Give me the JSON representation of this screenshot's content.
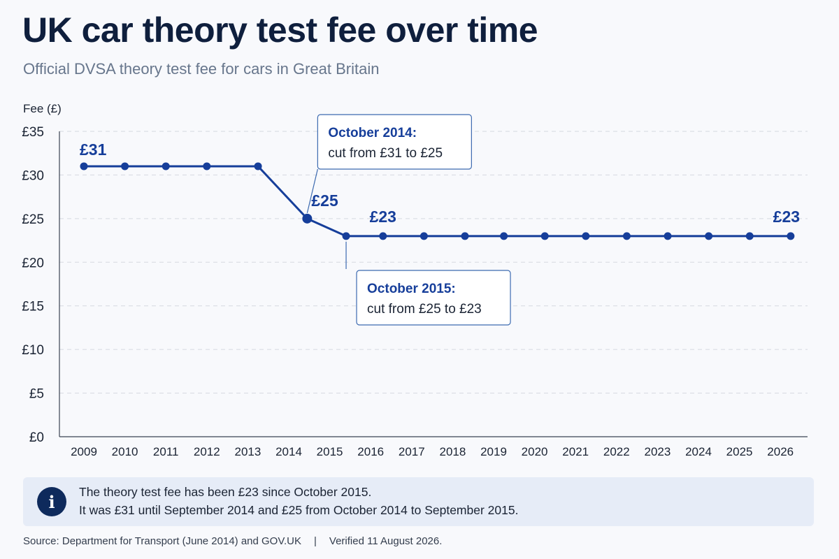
{
  "title": "UK car theory test fee over time",
  "subtitle": "Official DVSA theory test fee for cars in Great Britain",
  "colors": {
    "line": "#163e9a",
    "accent_text": "#163e9a",
    "callout_border": "#3c6ab0",
    "grid": "#d5d9e0",
    "info_bg": "#e6ecf7",
    "info_icon": "#0e2a5c"
  },
  "chart_data": {
    "type": "line",
    "ylabel": "Fee (£)",
    "ylim": [
      0,
      35
    ],
    "y_ticks": [
      {
        "value": 0,
        "label": "£0"
      },
      {
        "value": 5,
        "label": "£5"
      },
      {
        "value": 10,
        "label": "£10"
      },
      {
        "value": 15,
        "label": "£15"
      },
      {
        "value": 20,
        "label": "£20"
      },
      {
        "value": 25,
        "label": "£25"
      },
      {
        "value": 30,
        "label": "£30"
      },
      {
        "value": 35,
        "label": "£35"
      }
    ],
    "x_ticks": [
      "2009",
      "2010",
      "2011",
      "2012",
      "2013",
      "2014",
      "2015",
      "2016",
      "2017",
      "2018",
      "2019",
      "2020",
      "2021",
      "2022",
      "2023",
      "2024",
      "2025",
      "2026"
    ],
    "grid": "horizontal dashed",
    "series": [
      {
        "points": [
          {
            "x": 2009,
            "y": 31
          },
          {
            "x": 2010,
            "y": 31
          },
          {
            "x": 2011,
            "y": 31
          },
          {
            "x": 2012,
            "y": 31
          },
          {
            "x": 2013.25,
            "y": 31
          },
          {
            "x": 2014.45,
            "y": 25
          },
          {
            "x": 2015.4,
            "y": 23
          },
          {
            "x": 2016.3,
            "y": 23
          },
          {
            "x": 2017.3,
            "y": 23
          },
          {
            "x": 2018.3,
            "y": 23
          },
          {
            "x": 2019.25,
            "y": 23
          },
          {
            "x": 2020.25,
            "y": 23
          },
          {
            "x": 2021.25,
            "y": 23
          },
          {
            "x": 2022.25,
            "y": 23
          },
          {
            "x": 2023.25,
            "y": 23
          },
          {
            "x": 2024.25,
            "y": 23
          },
          {
            "x": 2025.25,
            "y": 23
          },
          {
            "x": 2026.25,
            "y": 23
          }
        ]
      }
    ],
    "data_labels": [
      {
        "x": 2009,
        "y": 31,
        "text": "£31"
      },
      {
        "x": 2014.45,
        "y": 25,
        "text": "£25"
      },
      {
        "x": 2016.3,
        "y": 23,
        "text": "£23"
      },
      {
        "x": 2026.25,
        "y": 23,
        "text": "£23"
      }
    ],
    "annotations": [
      {
        "x": 2014.45,
        "y": 25,
        "position": "above",
        "heading": "October 2014:",
        "text": "cut from £31 to £25"
      },
      {
        "x": 2015.4,
        "y": 23,
        "position": "below",
        "heading": "October 2015:",
        "text": "cut from £25 to £23"
      }
    ]
  },
  "info": {
    "icon": "info-icon",
    "icon_glyph": "i",
    "line1": "The theory test fee has been £23 since October 2015.",
    "line2": "It was £31 until September 2014 and £25 from October 2014 to September 2015."
  },
  "footer": {
    "source": "Source: Department for Transport (June 2014) and GOV.UK",
    "separator": "|",
    "verified": "Verified 11 August 2026."
  }
}
